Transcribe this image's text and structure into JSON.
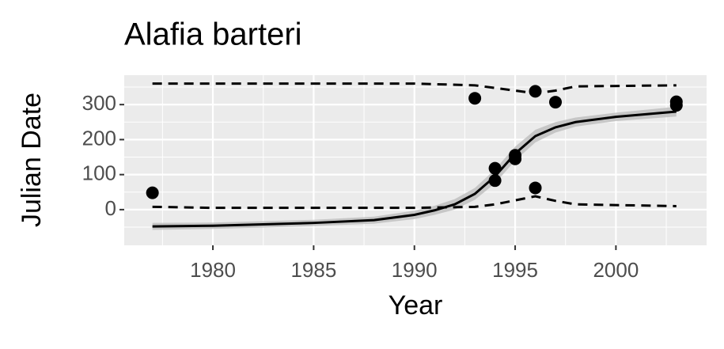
{
  "chart_data": {
    "type": "line",
    "title": "Alafia barteri",
    "x_label": "Year",
    "y_label": "Julian Date",
    "xlim": [
      1975.6,
      2004.5
    ],
    "ylim": [
      -102,
      384
    ],
    "xticks": [
      1980,
      1985,
      1990,
      1995,
      2000
    ],
    "yticks": [
      0,
      100,
      200,
      300
    ],
    "grid": true,
    "panel_color": "#ebebeb",
    "series": [
      {
        "style": "band",
        "color": "#bdbdbd",
        "x": [
          1977,
          1980,
          1985,
          1988,
          1990,
          1991,
          1992,
          1993,
          1994,
          1995,
          1996,
          1997,
          1998,
          2000,
          2003
        ],
        "lower": [
          -58,
          -55,
          -47,
          -40,
          -27,
          -15,
          0,
          28,
          75,
          140,
          192,
          220,
          237,
          253,
          266
        ],
        "upper": [
          -38,
          -37,
          -29,
          -20,
          -3,
          11,
          30,
          62,
          115,
          180,
          228,
          250,
          263,
          277,
          294
        ]
      },
      {
        "style": "solid",
        "color": "#000000",
        "x": [
          1977,
          1980,
          1985,
          1988,
          1990,
          1991,
          1992,
          1993,
          1994,
          1995,
          1996,
          1997,
          1998,
          2000,
          2003
        ],
        "values": [
          -48,
          -46,
          -38,
          -30,
          -15,
          -2,
          15,
          45,
          95,
          160,
          210,
          235,
          250,
          265,
          280
        ]
      },
      {
        "style": "dashed",
        "color": "#000000",
        "x": [
          1977,
          1990,
          1993,
          1995,
          1996,
          1997,
          1998,
          2003
        ],
        "values": [
          360,
          360,
          355,
          340,
          332,
          340,
          352,
          355
        ]
      },
      {
        "style": "dashed",
        "color": "#000000",
        "x": [
          1977,
          1980,
          1990,
          1993,
          1994,
          1996,
          1997,
          1998,
          2003
        ],
        "values": [
          8,
          5,
          5,
          8,
          15,
          38,
          25,
          15,
          10
        ]
      },
      {
        "style": "points",
        "color": "#000000",
        "x": [
          1977,
          1993,
          1994,
          1994,
          1995,
          1995,
          1996,
          1996,
          1997,
          2003,
          2003
        ],
        "values": [
          48,
          318,
          118,
          83,
          155,
          145,
          338,
          62,
          307,
          308,
          298
        ]
      }
    ]
  }
}
